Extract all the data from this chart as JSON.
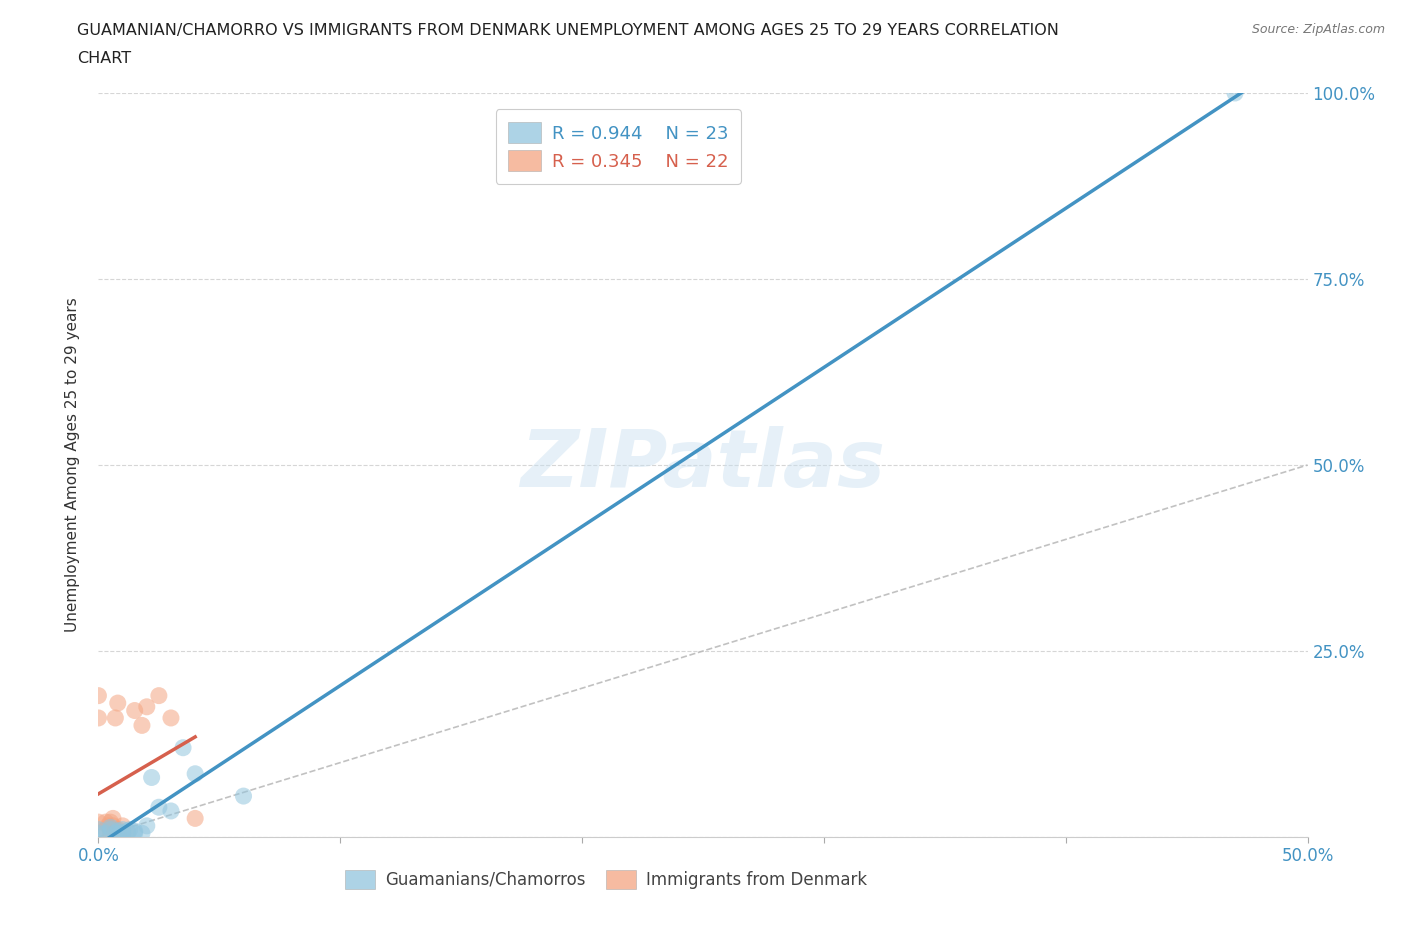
{
  "title_line1": "GUAMANIAN/CHAMORRO VS IMMIGRANTS FROM DENMARK UNEMPLOYMENT AMONG AGES 25 TO 29 YEARS CORRELATION",
  "title_line2": "CHART",
  "source": "Source: ZipAtlas.com",
  "ylabel": "Unemployment Among Ages 25 to 29 years",
  "xlim": [
    0,
    0.5
  ],
  "ylim": [
    0,
    1.0
  ],
  "xtick_vals": [
    0.0,
    0.1,
    0.2,
    0.3,
    0.4,
    0.5
  ],
  "xtick_labels_sparse": [
    "0.0%",
    "",
    "",
    "",
    "",
    "50.0%"
  ],
  "ytick_vals": [
    0.0,
    0.25,
    0.5,
    0.75,
    1.0
  ],
  "ytick_labels_right": [
    "",
    "25.0%",
    "50.0%",
    "75.0%",
    "100.0%"
  ],
  "background_color": "#ffffff",
  "watermark_text": "ZIPatlas",
  "legend_r1": "R = 0.944",
  "legend_n1": "N = 23",
  "legend_r2": "R = 0.345",
  "legend_n2": "N = 22",
  "blue_color": "#92c5de",
  "pink_color": "#f4a582",
  "blue_line_color": "#4393c3",
  "pink_line_color": "#d6604d",
  "diag_color": "#bbbbbb",
  "grid_color": "#cccccc",
  "tick_color": "#4393c3",
  "guamanians_x": [
    0.0,
    0.0,
    0.003,
    0.005,
    0.005,
    0.007,
    0.008,
    0.009,
    0.01,
    0.01,
    0.012,
    0.013,
    0.015,
    0.015,
    0.018,
    0.02,
    0.022,
    0.025,
    0.03,
    0.035,
    0.04,
    0.06,
    0.47
  ],
  "guamanians_y": [
    0.005,
    0.01,
    0.005,
    0.01,
    0.013,
    0.005,
    0.008,
    0.005,
    0.005,
    0.01,
    0.008,
    0.01,
    0.005,
    0.008,
    0.005,
    0.015,
    0.08,
    0.04,
    0.035,
    0.12,
    0.085,
    0.055,
    1.0
  ],
  "denmark_x": [
    0.0,
    0.0,
    0.0,
    0.003,
    0.003,
    0.004,
    0.005,
    0.005,
    0.006,
    0.006,
    0.007,
    0.008,
    0.008,
    0.01,
    0.01,
    0.012,
    0.015,
    0.018,
    0.02,
    0.025,
    0.03,
    0.04
  ],
  "denmark_y": [
    0.02,
    0.16,
    0.19,
    0.01,
    0.02,
    0.015,
    0.005,
    0.02,
    0.015,
    0.025,
    0.16,
    0.01,
    0.18,
    0.005,
    0.015,
    0.005,
    0.17,
    0.15,
    0.175,
    0.19,
    0.16,
    0.025
  ]
}
